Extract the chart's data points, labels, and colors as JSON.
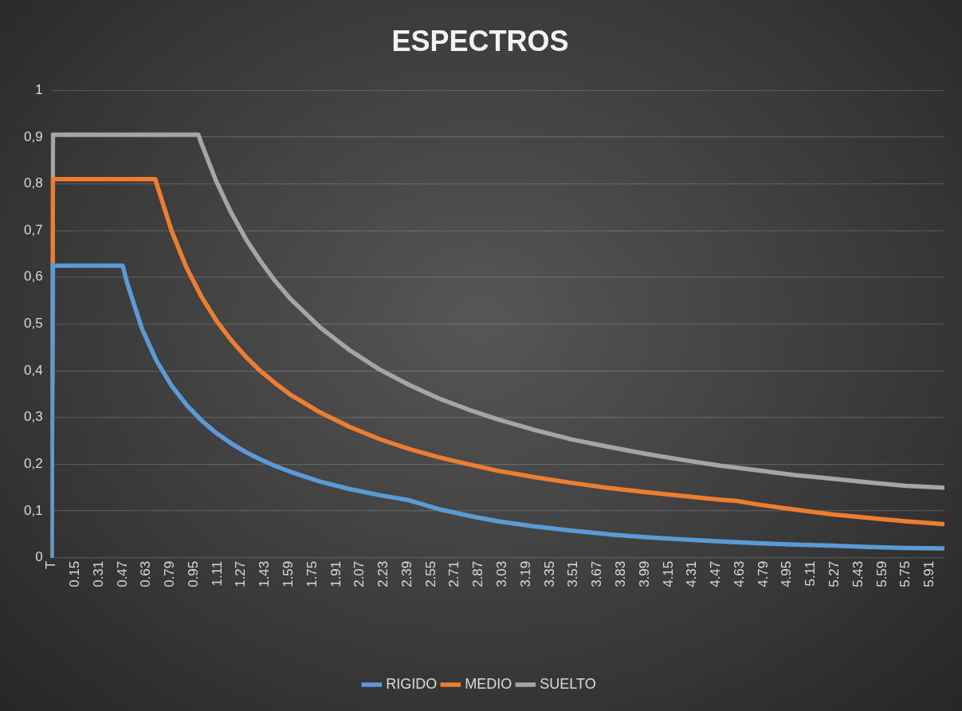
{
  "chart_data": {
    "type": "line",
    "title": "ESPECTROS",
    "series": [
      {
        "name": "RIGIDO",
        "color": "#5b9bd5",
        "x": [
          -0.01,
          0,
          0.47,
          0.5,
          0.6,
          0.7,
          0.8,
          0.9,
          1.0,
          1.1,
          1.2,
          1.3,
          1.4,
          1.5,
          1.6,
          1.8,
          2.0,
          2.2,
          2.4,
          2.6,
          2.8,
          3.0,
          3.25,
          3.5,
          3.75,
          4.0,
          4.25,
          4.5,
          4.75,
          5.0,
          5.25,
          5.5,
          5.75,
          6.0
        ],
        "values": [
          0,
          0.625,
          0.625,
          0.588,
          0.49,
          0.42,
          0.368,
          0.327,
          0.294,
          0.267,
          0.245,
          0.226,
          0.21,
          0.196,
          0.184,
          0.163,
          0.147,
          0.134,
          0.123,
          0.104,
          0.09,
          0.078,
          0.067,
          0.058,
          0.05,
          0.044,
          0.039,
          0.035,
          0.031,
          0.028,
          0.026,
          0.023,
          0.021,
          0.02
        ]
      },
      {
        "name": "MEDIO",
        "color": "#ed7d31",
        "x": [
          -0.01,
          0,
          0.69,
          0.7,
          0.8,
          0.9,
          1.0,
          1.1,
          1.2,
          1.3,
          1.4,
          1.5,
          1.6,
          1.8,
          2.0,
          2.2,
          2.4,
          2.6,
          2.8,
          3.0,
          3.25,
          3.5,
          3.75,
          4.0,
          4.25,
          4.5,
          4.6,
          4.75,
          5.0,
          5.25,
          5.5,
          5.75,
          6.0
        ],
        "values": [
          0,
          0.81,
          0.81,
          0.799,
          0.699,
          0.621,
          0.559,
          0.508,
          0.466,
          0.43,
          0.399,
          0.373,
          0.349,
          0.311,
          0.28,
          0.254,
          0.233,
          0.215,
          0.2,
          0.186,
          0.172,
          0.16,
          0.149,
          0.14,
          0.132,
          0.124,
          0.122,
          0.114,
          0.103,
          0.093,
          0.085,
          0.078,
          0.072
        ]
      },
      {
        "name": "SUELTO",
        "color": "#a5a5a5",
        "x": [
          -0.01,
          0,
          0.98,
          1.0,
          1.1,
          1.2,
          1.3,
          1.4,
          1.5,
          1.6,
          1.8,
          2.0,
          2.2,
          2.4,
          2.6,
          2.8,
          3.0,
          3.25,
          3.5,
          3.75,
          4.0,
          4.25,
          4.5,
          4.75,
          5.0,
          5.25,
          5.5,
          5.75,
          6.0
        ],
        "values": [
          0,
          0.905,
          0.905,
          0.887,
          0.806,
          0.739,
          0.682,
          0.634,
          0.591,
          0.554,
          0.493,
          0.444,
          0.403,
          0.37,
          0.341,
          0.317,
          0.296,
          0.273,
          0.253,
          0.237,
          0.222,
          0.209,
          0.197,
          0.187,
          0.177,
          0.169,
          0.161,
          0.154,
          0.15
        ]
      }
    ],
    "xlim": [
      -0.015,
      6.01
    ],
    "xticks": [
      {
        "value": -0.01,
        "label": "T"
      },
      0.15,
      0.31,
      0.47,
      0.63,
      0.79,
      0.95,
      1.11,
      1.27,
      1.43,
      1.59,
      1.75,
      1.91,
      2.07,
      2.23,
      2.39,
      2.55,
      2.71,
      2.87,
      3.03,
      3.19,
      3.35,
      3.51,
      3.67,
      3.83,
      3.99,
      4.15,
      4.31,
      4.47,
      4.63,
      4.79,
      4.95,
      5.11,
      5.27,
      5.43,
      5.59,
      5.75,
      5.91
    ],
    "ylim": [
      0,
      1
    ],
    "yticks": [
      0,
      {
        "value": 0.1,
        "label": "0,1"
      },
      {
        "value": 0.2,
        "label": "0,2"
      },
      {
        "value": 0.3,
        "label": "0,3"
      },
      {
        "value": 0.4,
        "label": "0,4"
      },
      {
        "value": 0.5,
        "label": "0,5"
      },
      {
        "value": 0.6,
        "label": "0,6"
      },
      {
        "value": 0.7,
        "label": "0,7"
      },
      {
        "value": 0.8,
        "label": "0,8"
      },
      {
        "value": 0.9,
        "label": "0,9"
      },
      1
    ],
    "grid": "y",
    "legend": "bottom",
    "marker": "none",
    "line_style": "solid"
  }
}
